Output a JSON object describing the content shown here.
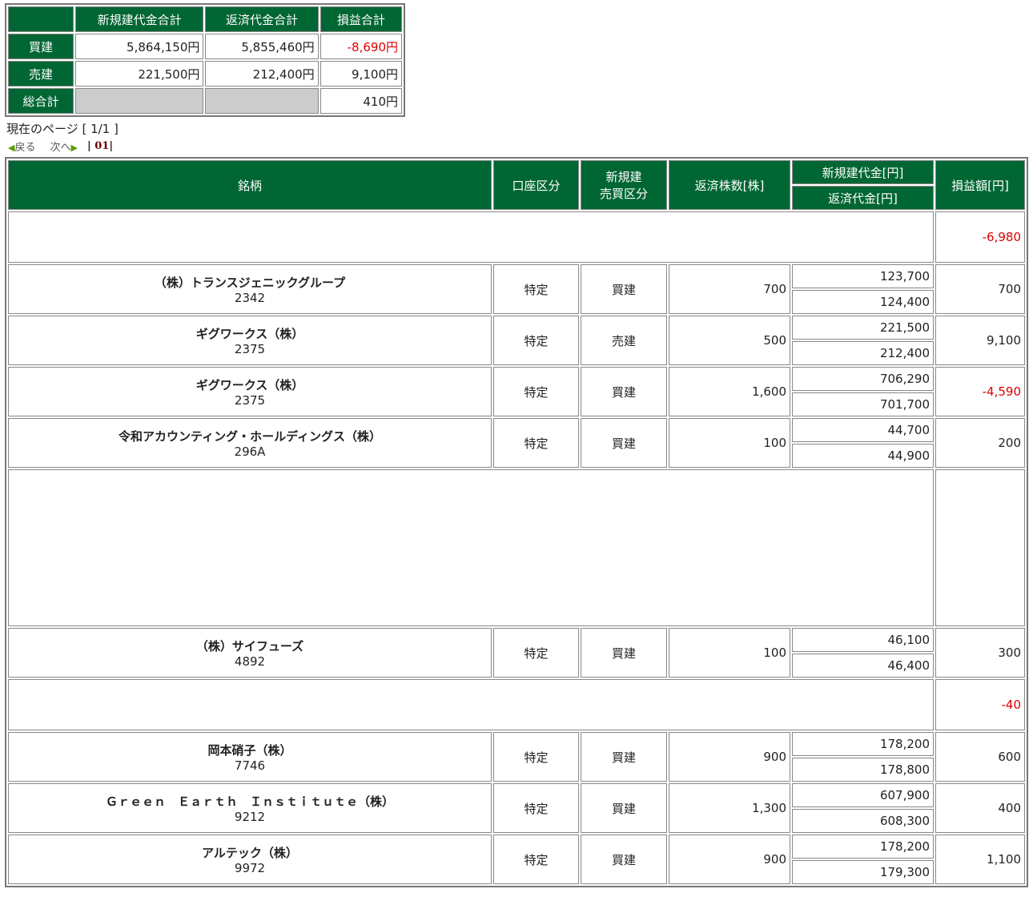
{
  "summary": {
    "headers": [
      "新規建代金合計",
      "返済代金合計",
      "損益合計"
    ],
    "rows": [
      {
        "label": "買建",
        "new": "5,864,150円",
        "ret": "5,855,460円",
        "pl": "-8,690円",
        "neg": true
      },
      {
        "label": "売建",
        "new": "221,500円",
        "ret": "212,400円",
        "pl": "9,100円",
        "neg": false
      }
    ],
    "total": {
      "label": "総合計",
      "pl": "410円"
    }
  },
  "pager": {
    "current": "現在のページ [ 1/1 ]",
    "prev": "戻る",
    "next": "次へ",
    "page": "01"
  },
  "table": {
    "headers": {
      "name": "銘柄",
      "account": "口座区分",
      "side1": "新規建",
      "side2": "売買区分",
      "qty": "返済株数[株]",
      "newamt": "新規建代金[円]",
      "retamt": "返済代金[円]",
      "pl": "損益額[円]"
    },
    "rows": [
      {
        "type": "blank",
        "pl": "-6,980",
        "neg": true
      },
      {
        "name": "（株）トランスジェニックグループ",
        "code": "2342",
        "account": "特定",
        "side": "買建",
        "qty": "700",
        "new": "123,700",
        "ret": "124,400",
        "pl": "700"
      },
      {
        "name": "ギグワークス（株）",
        "code": "2375",
        "account": "特定",
        "side": "売建",
        "qty": "500",
        "new": "221,500",
        "ret": "212,400",
        "pl": "9,100"
      },
      {
        "name": "ギグワークス（株）",
        "code": "2375",
        "account": "特定",
        "side": "買建",
        "qty": "1,600",
        "new": "706,290",
        "ret": "701,700",
        "pl": "-4,590",
        "neg": true
      },
      {
        "name": "令和アカウンティング・ホールディングス（株）",
        "code": "296A",
        "account": "特定",
        "side": "買建",
        "qty": "100",
        "new": "44,700",
        "ret": "44,900",
        "pl": "200"
      },
      {
        "type": "blankbig",
        "pl": ""
      },
      {
        "name": "（株）サイフューズ",
        "code": "4892",
        "account": "特定",
        "side": "買建",
        "qty": "100",
        "new": "46,100",
        "ret": "46,400",
        "pl": "300"
      },
      {
        "type": "blank",
        "pl": "-40",
        "neg": true
      },
      {
        "name": "岡本硝子（株）",
        "code": "7746",
        "account": "特定",
        "side": "買建",
        "qty": "900",
        "new": "178,200",
        "ret": "178,800",
        "pl": "600"
      },
      {
        "name": "Ｇｒｅｅｎ　Ｅａｒｔｈ　Ｉｎｓｔｉｔｕｔｅ（株）",
        "code": "9212",
        "account": "特定",
        "side": "買建",
        "qty": "1,300",
        "new": "607,900",
        "ret": "608,300",
        "pl": "400"
      },
      {
        "name": "アルテック（株）",
        "code": "9972",
        "account": "特定",
        "side": "買建",
        "qty": "900",
        "new": "178,200",
        "ret": "179,300",
        "pl": "1,100"
      }
    ]
  }
}
